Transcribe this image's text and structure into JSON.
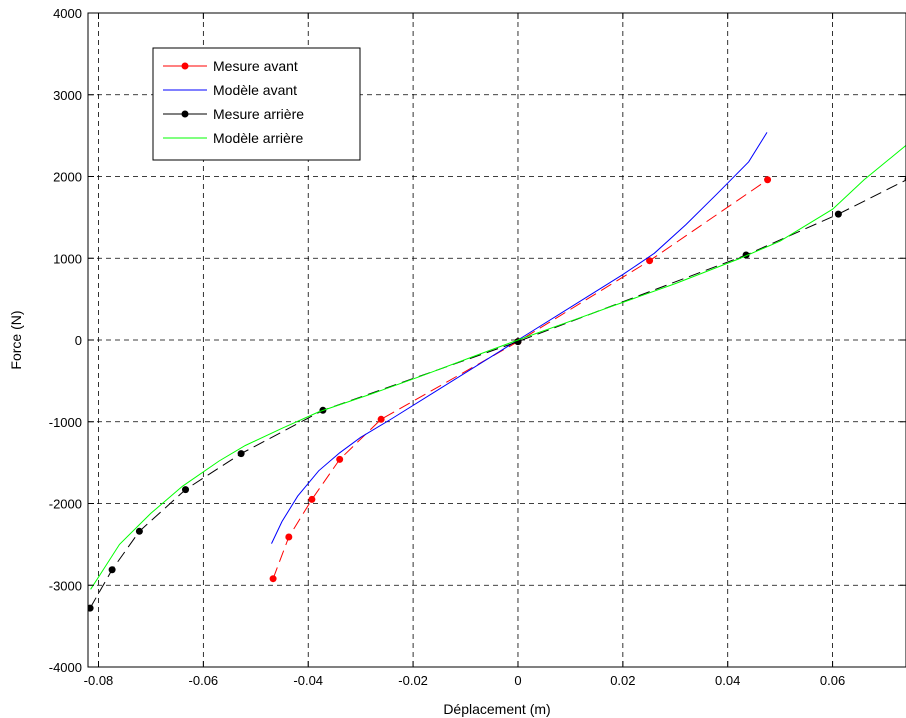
{
  "chart_data": {
    "type": "line",
    "title": "",
    "xlabel": "Déplacement (m)",
    "ylabel": "Force (N)",
    "xlim": [
      -0.082,
      0.074
    ],
    "ylim": [
      -4000,
      4000
    ],
    "xticks": [
      -0.08,
      -0.06,
      -0.04,
      -0.02,
      0,
      0.02,
      0.04,
      0.06
    ],
    "xtick_labels": [
      "-0.08",
      "-0.06",
      "-0.04",
      "-0.02",
      "0",
      "0.02",
      "0.04",
      "0.06"
    ],
    "yticks": [
      -4000,
      -3000,
      -2000,
      -1000,
      0,
      1000,
      2000,
      3000,
      4000
    ],
    "ytick_labels": [
      "-4000",
      "-3000",
      "-2000",
      "-1000",
      "0",
      "1000",
      "2000",
      "3000",
      "4000"
    ],
    "grid": true,
    "legend_position": "top-left",
    "series": [
      {
        "name": "Mesure avant",
        "color": "#ff0000",
        "style": "dashed-markers",
        "x": [
          -0.0467,
          -0.0437,
          -0.0393,
          -0.034,
          -0.0261,
          0.0,
          0.0251,
          0.0476
        ],
        "y": [
          -2920,
          -2410,
          -1950,
          -1460,
          -970,
          -20,
          970,
          1960
        ]
      },
      {
        "name": "Modèle avant",
        "color": "#0000ff",
        "style": "solid",
        "x": [
          -0.047,
          -0.045,
          -0.042,
          -0.038,
          -0.034,
          -0.03,
          -0.024,
          -0.016,
          -0.008,
          0.0,
          0.01,
          0.02,
          0.026,
          0.032,
          0.038,
          0.044,
          0.0475
        ],
        "y": [
          -2490,
          -2220,
          -1910,
          -1600,
          -1380,
          -1190,
          -960,
          -640,
          -320,
          0,
          400,
          800,
          1060,
          1410,
          1790,
          2180,
          2540
        ]
      },
      {
        "name": "Mesure arrière",
        "color": "#000000",
        "style": "dashed-markers",
        "x": [
          -0.0816,
          -0.0774,
          -0.0722,
          -0.0634,
          -0.0528,
          -0.0372,
          0.0,
          0.0435,
          0.0611,
          0.0744
        ],
        "y": [
          -3280,
          -2810,
          -2340,
          -1830,
          -1390,
          -860,
          -20,
          1040,
          1540,
          1970
        ]
      },
      {
        "name": "Modèle arrière",
        "color": "#00ff00",
        "style": "solid",
        "x": [
          -0.0815,
          -0.08,
          -0.076,
          -0.07,
          -0.064,
          -0.057,
          -0.052,
          -0.045,
          -0.038,
          -0.028,
          -0.018,
          -0.008,
          0.0,
          0.01,
          0.02,
          0.03,
          0.042,
          0.05,
          0.06,
          0.066,
          0.074
        ],
        "y": [
          -3050,
          -2900,
          -2500,
          -2120,
          -1790,
          -1480,
          -1290,
          -1080,
          -880,
          -660,
          -430,
          -190,
          0,
          230,
          460,
          690,
          990,
          1210,
          1600,
          1960,
          2380
        ]
      }
    ]
  }
}
